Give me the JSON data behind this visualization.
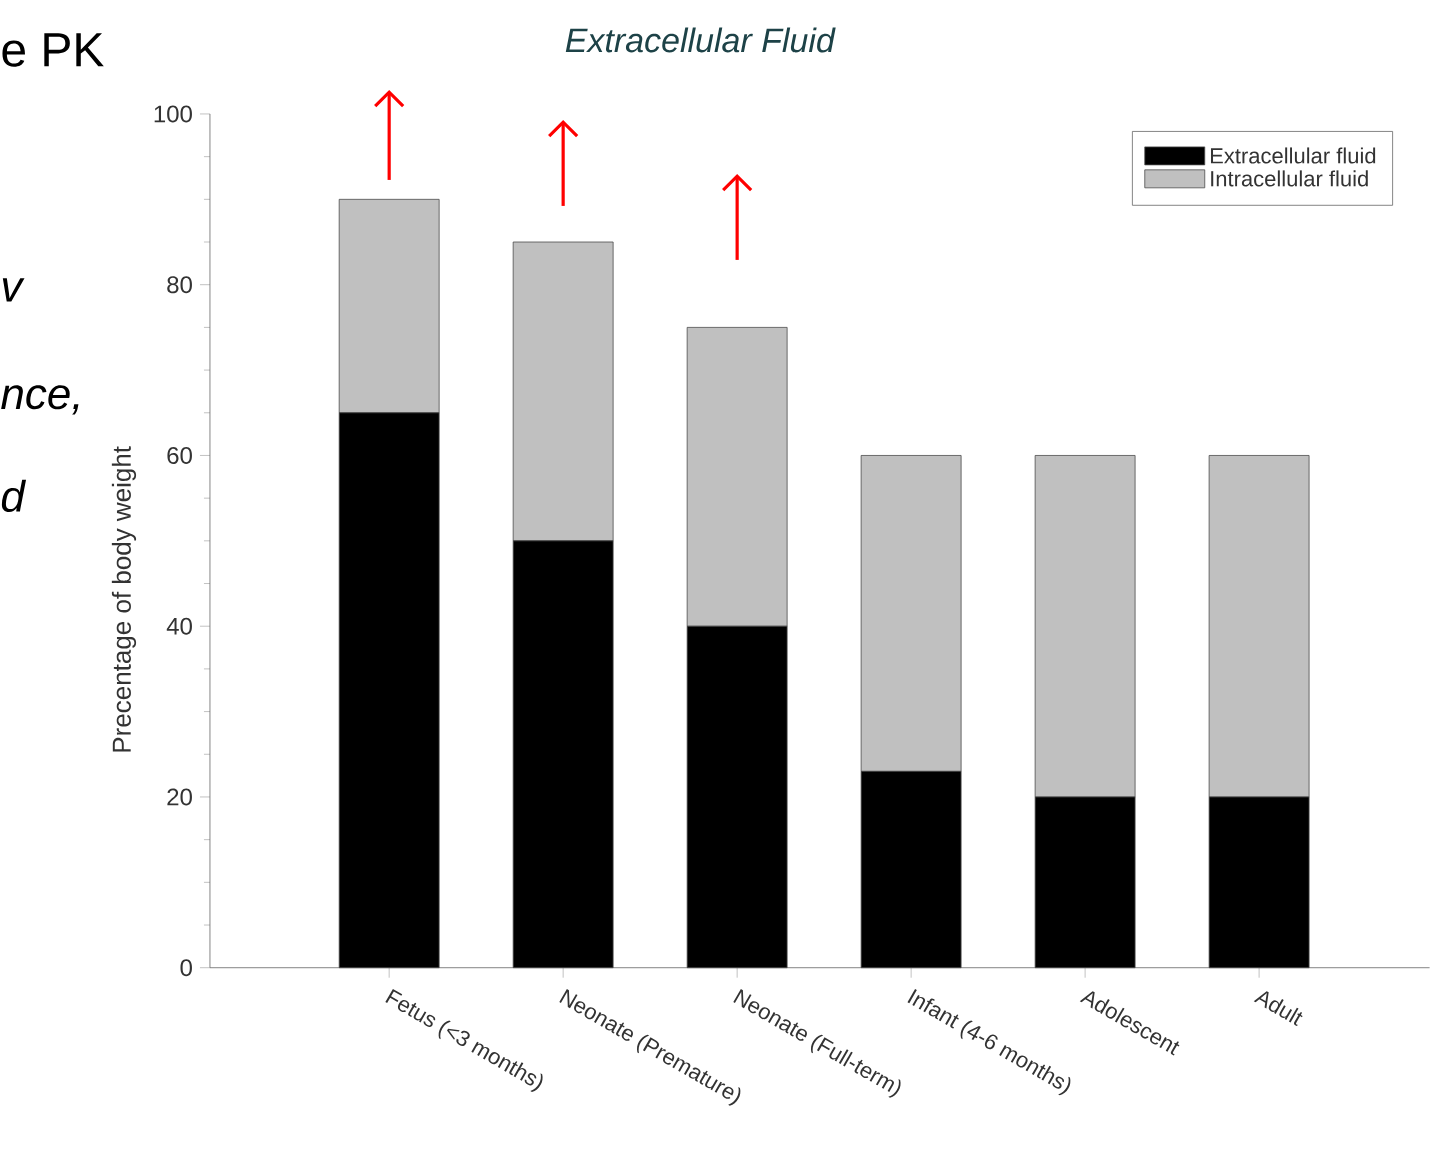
{
  "chart_data": {
    "type": "bar",
    "stacked": true,
    "title": "Extracellular Fluid",
    "ylabel": "Precentage of body weight",
    "categories": [
      "Fetus (<3 months)",
      "Neonate (Premature)",
      "Neonate (Full-term)",
      "Infant (4-6 months)",
      "Adolescent",
      "Adult"
    ],
    "series": [
      {
        "name": "Extracellular fluid",
        "color": "#000000",
        "values": [
          65,
          50,
          40,
          23,
          20,
          20
        ]
      },
      {
        "name": "Intracellular fluid",
        "color": "#c0c0c0",
        "values": [
          25,
          35,
          35,
          37,
          40,
          40
        ]
      }
    ],
    "ylim": [
      0,
      100
    ],
    "yticks": [
      0,
      20,
      40,
      60,
      80,
      100
    ],
    "grid": false,
    "legend": "top right",
    "annotations": [
      "e PK",
      "v",
      "nce,",
      "d"
    ]
  }
}
